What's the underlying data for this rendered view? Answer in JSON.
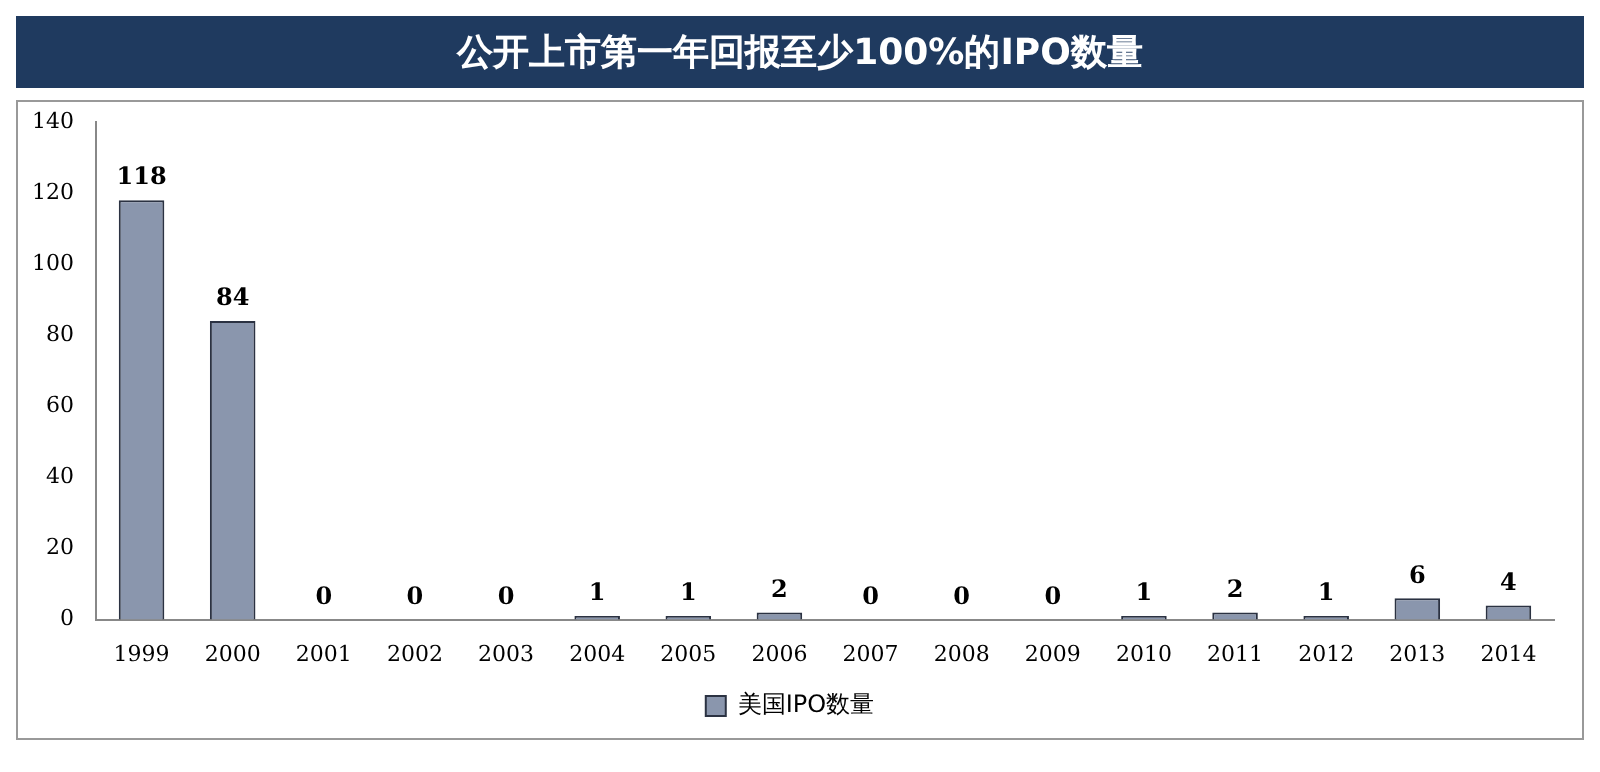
{
  "chart_data": {
    "type": "bar",
    "title": "公开上市第一年回报至少100%的IPO数量",
    "categories": [
      "1999",
      "2000",
      "2001",
      "2002",
      "2003",
      "2004",
      "2005",
      "2006",
      "2007",
      "2008",
      "2009",
      "2010",
      "2011",
      "2012",
      "2013",
      "2014"
    ],
    "series": [
      {
        "name": "美国IPO数量",
        "color": "#8a96ad",
        "values": [
          118,
          84,
          0,
          0,
          0,
          1,
          1,
          2,
          0,
          0,
          0,
          1,
          2,
          1,
          6,
          4
        ]
      }
    ],
    "ylim": [
      0,
      140
    ],
    "yticks": [
      0,
      20,
      40,
      60,
      80,
      100,
      120,
      140
    ],
    "grid": false,
    "legend": "bottom",
    "data_labels": true
  }
}
